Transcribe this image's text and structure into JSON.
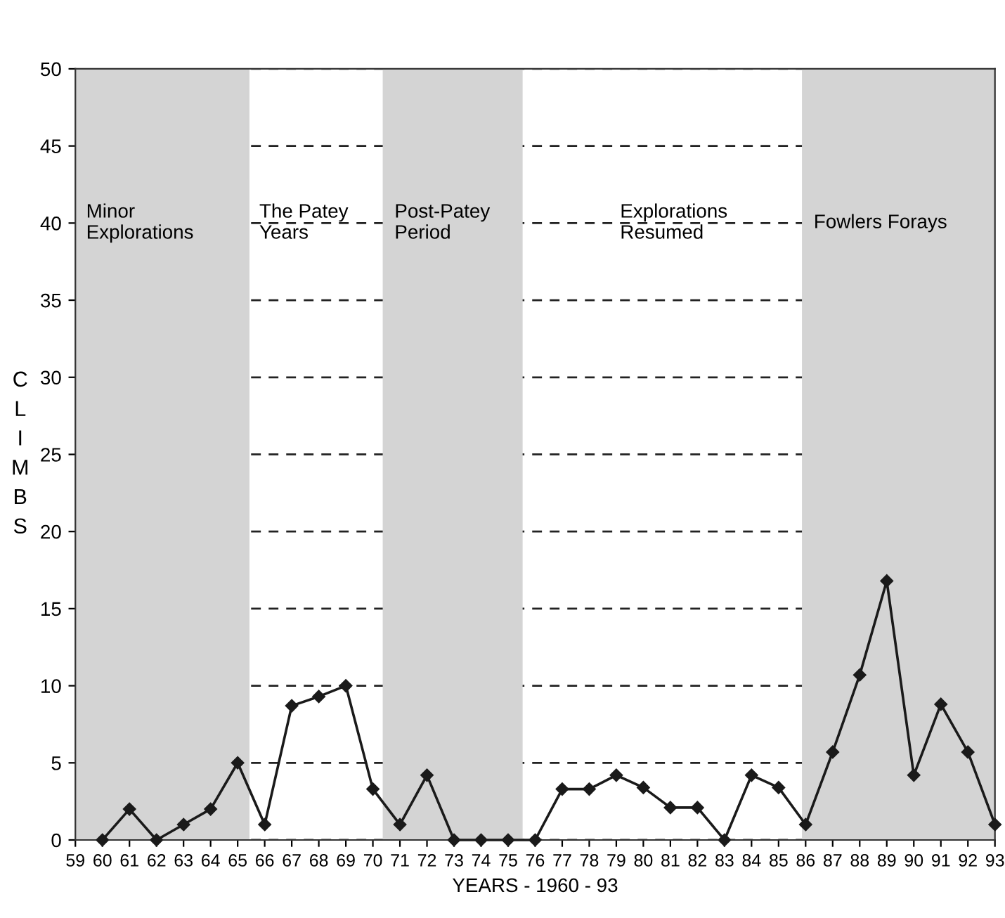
{
  "chart_data": {
    "type": "line",
    "xlabel": "YEARS - 1960 - 93",
    "ylabel": "CLIMBS",
    "x": [
      60,
      61,
      62,
      63,
      64,
      65,
      66,
      67,
      68,
      69,
      70,
      71,
      72,
      73,
      74,
      75,
      76,
      77,
      78,
      79,
      80,
      81,
      82,
      83,
      84,
      85,
      86,
      87,
      88,
      89,
      90,
      91,
      92,
      93
    ],
    "series": [
      {
        "color": "#1a1a1a",
        "values": [
          0,
          2,
          0,
          1,
          2,
          5,
          1,
          8.7,
          9.3,
          10,
          3.3,
          1,
          4.2,
          0,
          0,
          0,
          0,
          3.3,
          3.3,
          4.2,
          3.4,
          2.1,
          2.1,
          0,
          4.2,
          3.4,
          1,
          5.7,
          10.7,
          16.8,
          4.2,
          8.8,
          5.7,
          1
        ]
      }
    ],
    "xlim": [
      59,
      93
    ],
    "xticks": [
      59,
      60,
      61,
      62,
      63,
      64,
      65,
      66,
      67,
      68,
      69,
      70,
      71,
      72,
      73,
      74,
      75,
      76,
      77,
      78,
      79,
      80,
      81,
      82,
      83,
      84,
      85,
      86,
      87,
      88,
      89,
      90,
      91,
      92,
      93
    ],
    "ylim": [
      0,
      50
    ],
    "yticks": [
      0,
      5,
      10,
      15,
      20,
      25,
      30,
      35,
      40,
      45,
      50
    ],
    "grid": "y",
    "marker": "diamond",
    "line_style": "solid",
    "bands": [
      {
        "axis": "x",
        "from": 59,
        "to": 65.4,
        "label": "Minor\nExplorations",
        "color": "#d4d4d4"
      },
      {
        "axis": "x",
        "from": 70.4,
        "to": 75.5,
        "label": "Post-Patey\nPeriod",
        "color": "#d4d4d4"
      },
      {
        "axis": "x",
        "from": 85.9,
        "to": 93,
        "label": "Fowlers Forays",
        "color": "#d4d4d4"
      }
    ],
    "annotations": [
      "The Patey\nYears",
      "Explorations\nResumed"
    ]
  }
}
